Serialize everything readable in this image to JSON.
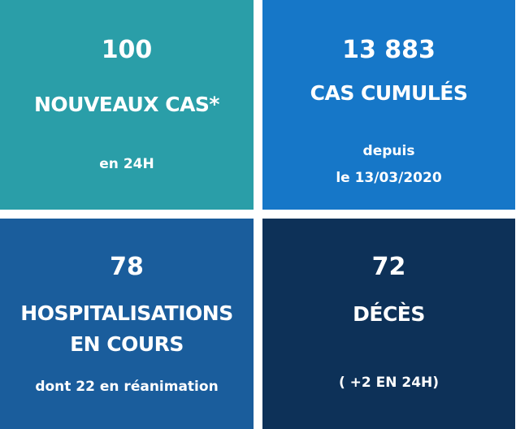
{
  "tiles": [
    {
      "value": "100",
      "label": "NOUVEAUX CAS*",
      "sub": [
        "en 24H"
      ],
      "color": "#2a9ea8"
    },
    {
      "value": "13 883",
      "label": "CAS CUMULÉS",
      "sub": [
        "depuis",
        "le 13/03/2020"
      ],
      "color": "#1677c8"
    },
    {
      "value": "78",
      "label": [
        "HOSPITALISATIONS",
        "EN COURS"
      ],
      "sub": [
        "dont 22 en réanimation"
      ],
      "color": "#1a5d9c"
    },
    {
      "value": "72",
      "label": "DÉCÈS",
      "sub": [
        "( +2 EN 24H)"
      ],
      "color": "#0d3158"
    }
  ]
}
